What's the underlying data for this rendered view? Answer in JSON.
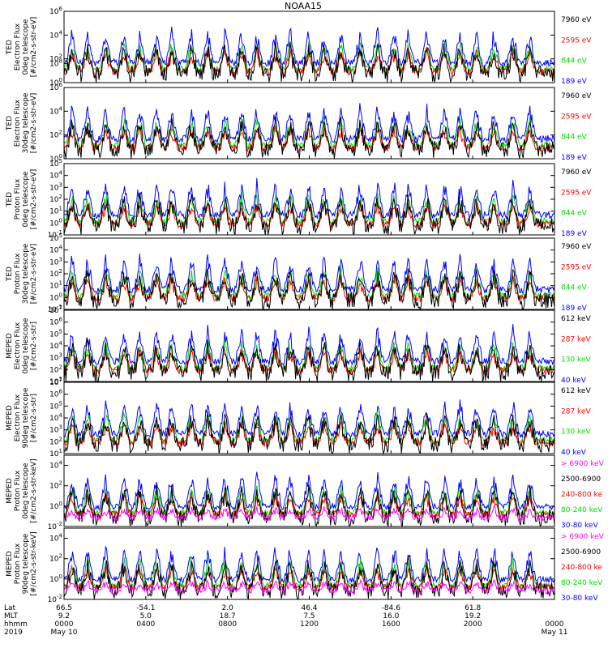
{
  "title": "NOAA15",
  "colors": {
    "black": "#000000",
    "blue": "#0000ff",
    "green": "#00dd00",
    "red": "#ff0000",
    "magenta": "#ff00ff"
  },
  "chart_data": {
    "type": "line",
    "title": "NOAA15",
    "x_ticks": [
      "0000",
      "0400",
      "0800",
      "1200",
      "1600",
      "2000",
      "0000"
    ],
    "panels": [
      {
        "ylabel": [
          "TED",
          "Electron Flux",
          "0deg telescope",
          "[#/cm2-s-str-eV]"
        ],
        "ylim": [
          1,
          1000000
        ],
        "yscale": "log",
        "y_tick_labels": [
          "10^0",
          "10^2",
          "10^4",
          "10^6",
          "10^8"
        ],
        "legend": [
          {
            "label": "7960 eV",
            "color": "black"
          },
          {
            "label": "2595 eV",
            "color": "red"
          },
          {
            "label": "844 eV",
            "color": "green"
          },
          {
            "label": "189 eV",
            "color": "blue"
          }
        ]
      },
      {
        "ylabel": [
          "TED",
          "Electron Flux",
          "30deg telescope",
          "[#/cm2-s-str-eV]"
        ],
        "ylim": [
          1,
          1000000
        ],
        "yscale": "log",
        "y_tick_labels": [
          "10^0",
          "10^2",
          "10^4",
          "10^6",
          "10^8"
        ],
        "legend": [
          {
            "label": "7960 eV",
            "color": "black"
          },
          {
            "label": "2595 eV",
            "color": "red"
          },
          {
            "label": "844 eV",
            "color": "green"
          },
          {
            "label": "189 eV",
            "color": "blue"
          }
        ]
      },
      {
        "ylabel": [
          "TED",
          "Proton Flux",
          "0deg telescope",
          "[#/cm2-s-str-eV]"
        ],
        "ylim": [
          0.1,
          100000
        ],
        "yscale": "log",
        "y_tick_labels": [
          "10^-1",
          "10^0",
          "10^1",
          "10^2",
          "10^3",
          "10^4",
          "10^5"
        ],
        "legend": [
          {
            "label": "7960 eV",
            "color": "black"
          },
          {
            "label": "2595 eV",
            "color": "red"
          },
          {
            "label": "844 eV",
            "color": "green"
          },
          {
            "label": "189 eV",
            "color": "blue"
          }
        ]
      },
      {
        "ylabel": [
          "TED",
          "Proton Flux",
          "30deg telescope",
          "[#/cm2-s-str-eV]"
        ],
        "ylim": [
          0.1,
          100000
        ],
        "yscale": "log",
        "y_tick_labels": [
          "10^-1",
          "10^0",
          "10^1",
          "10^2",
          "10^3",
          "10^4",
          "10^5"
        ],
        "legend": [
          {
            "label": "7960 eV",
            "color": "black"
          },
          {
            "label": "2595 eV",
            "color": "red"
          },
          {
            "label": "844 eV",
            "color": "green"
          },
          {
            "label": "189 eV",
            "color": "blue"
          }
        ]
      },
      {
        "ylabel": [
          "MEPED",
          "Electron Flux",
          "0deg telescope",
          "[#/cm2-s-str]"
        ],
        "ylim": [
          10,
          10000000
        ],
        "yscale": "log",
        "y_tick_labels": [
          "10^1",
          "10^2",
          "10^3",
          "10^4",
          "10^5",
          "10^6",
          "10^7"
        ],
        "legend": [
          {
            "label": "612 keV",
            "color": "black"
          },
          {
            "label": "287 keV",
            "color": "red"
          },
          {
            "label": "130 keV",
            "color": "green"
          },
          {
            "label": "40 keV",
            "color": "blue"
          }
        ]
      },
      {
        "ylabel": [
          "MEPED",
          "Electron Flux",
          "90deg telescope",
          "[#/cm2-s-str]"
        ],
        "ylim": [
          10,
          10000000
        ],
        "yscale": "log",
        "y_tick_labels": [
          "10^1",
          "10^2",
          "10^3",
          "10^4",
          "10^5",
          "10^6",
          "10^7"
        ],
        "legend": [
          {
            "label": "612 keV",
            "color": "black"
          },
          {
            "label": "287 keV",
            "color": "red"
          },
          {
            "label": "130 keV",
            "color": "green"
          },
          {
            "label": "40 keV",
            "color": "blue"
          }
        ]
      },
      {
        "ylabel": [
          "MEPED",
          "Proton Flux",
          "0deg telescope",
          "[#/cm2-s-str-keV]"
        ],
        "ylim": [
          0.01,
          100000
        ],
        "yscale": "log",
        "y_tick_labels": [
          "10^-2",
          "10^0",
          "10^2",
          "10^4"
        ],
        "legend": [
          {
            "label": "> 6900 keV",
            "color": "magenta"
          },
          {
            "label": "2500-6900",
            "color": "black"
          },
          {
            "label": "240-800 ke",
            "color": "red"
          },
          {
            "label": "80-240 keV",
            "color": "green"
          },
          {
            "label": "30-80 keV",
            "color": "blue"
          }
        ]
      },
      {
        "ylabel": [
          "MEPED",
          "Proton Flux",
          "90deg telescope",
          "[#/cm2-s-str-keV]"
        ],
        "ylim": [
          0.01,
          100000
        ],
        "yscale": "log",
        "y_tick_labels": [
          "10^-2",
          "10^0",
          "10^2",
          "10^4"
        ],
        "legend": [
          {
            "label": "> 6900 keV",
            "color": "magenta"
          },
          {
            "label": "2500-6900",
            "color": "black"
          },
          {
            "label": "240-800 ke",
            "color": "red"
          },
          {
            "label": "80-240 keV",
            "color": "green"
          },
          {
            "label": "30-80 keV",
            "color": "blue"
          }
        ]
      }
    ],
    "x_axis_rows": [
      {
        "label": "Lat",
        "values": [
          "66.5",
          "-54.1",
          "2.0",
          "46.4",
          "-84.6",
          "61.8",
          ""
        ]
      },
      {
        "label": "MLT",
        "values": [
          "9.2",
          "5.0",
          "18.7",
          "7.5",
          "16.0",
          "19.2",
          ""
        ]
      },
      {
        "label": "hhmm",
        "values": [
          "0000",
          "0400",
          "0800",
          "1200",
          "1600",
          "2000",
          "0000"
        ]
      },
      {
        "label": "2019",
        "values": [
          "May 10",
          "",
          "",
          "",
          "",
          "",
          "May 11"
        ]
      }
    ]
  }
}
